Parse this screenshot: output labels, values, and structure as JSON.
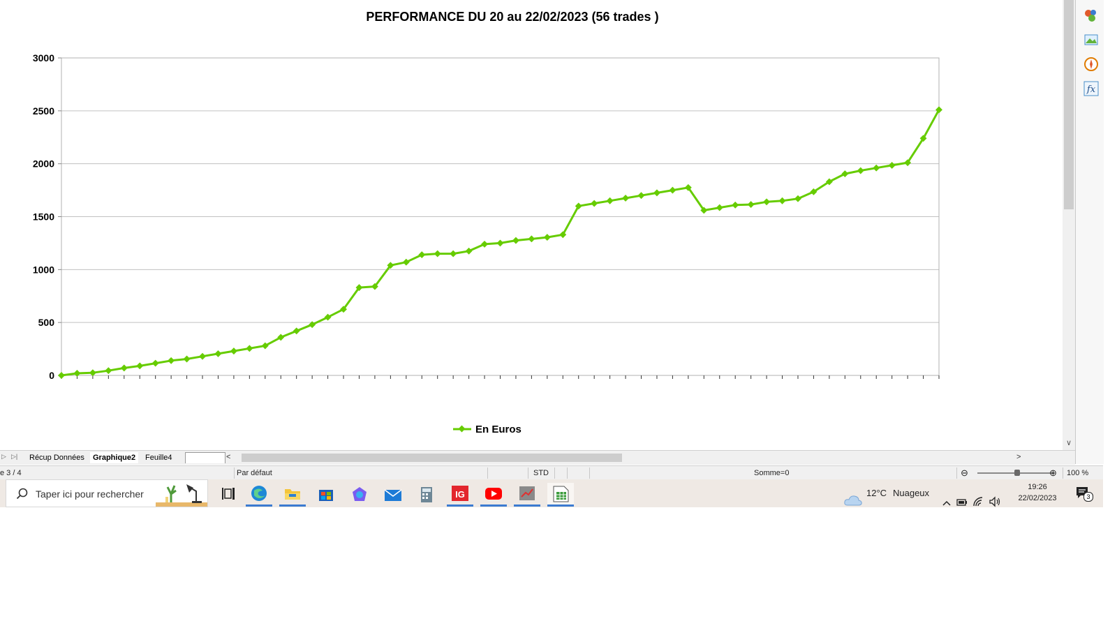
{
  "chart_data": {
    "type": "line",
    "title": "PERFORMANCE DU 20 au 22/02/2023 (56 trades )",
    "xlabel": "",
    "ylabel": "",
    "ylim": [
      0,
      3000
    ],
    "yticks": [
      "0",
      "500",
      "1000",
      "1500",
      "2000",
      "2500",
      "3000"
    ],
    "grid": true,
    "legend": "bottom",
    "color": "#66cc00",
    "series": [
      {
        "name": "En Euros",
        "values": [
          0,
          20,
          25,
          45,
          70,
          90,
          115,
          140,
          155,
          180,
          205,
          230,
          255,
          280,
          360,
          420,
          480,
          550,
          625,
          830,
          840,
          1040,
          1070,
          1140,
          1150,
          1150,
          1175,
          1240,
          1250,
          1275,
          1290,
          1305,
          1330,
          1600,
          1625,
          1650,
          1675,
          1700,
          1725,
          1750,
          1775,
          1560,
          1585,
          1610,
          1615,
          1640,
          1650,
          1670,
          1735,
          1830,
          1905,
          1935,
          1960,
          1985,
          2010,
          2240,
          2510
        ]
      }
    ]
  },
  "sheet_tabs": {
    "labels": [
      "Récup Données",
      "Graphique2",
      "Feuille4"
    ],
    "active": "Graphique2"
  },
  "status_bar": {
    "page": "e 3 / 4",
    "style": "Par défaut",
    "mode": "STD",
    "sum": "Somme=0",
    "zoom": "100 %"
  },
  "taskbar": {
    "search_placeholder": "Taper ici pour rechercher",
    "weather_temp": "12°C",
    "weather_desc": "Nuageux",
    "time": "19:26",
    "date": "22/02/2023",
    "notification_count": "3"
  }
}
